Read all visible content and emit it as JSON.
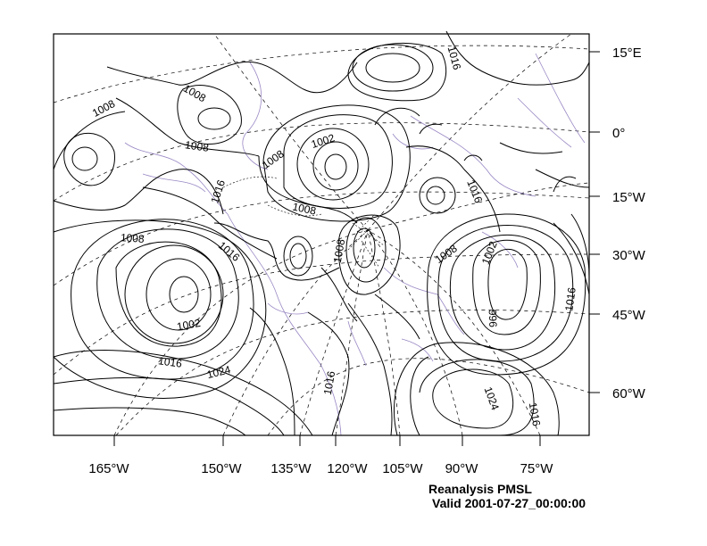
{
  "caption": {
    "title": "Reanalysis PMSL",
    "valid": "Valid 2001-07-27_00:00:00"
  },
  "axes": {
    "right_labels": [
      "15°E",
      "0°",
      "15°W",
      "30°W",
      "45°W",
      "60°W"
    ],
    "bottom_labels": [
      "165°W",
      "150°W",
      "135°W",
      "120°W",
      "105°W",
      "90°W",
      "75°W"
    ]
  },
  "contour_labels": [
    "1008",
    "1008",
    "1008",
    "1016",
    "1002",
    "1008",
    "1008",
    "1016",
    "1008",
    "1016",
    "1002",
    "1008",
    "1008",
    "996",
    "1016",
    "1002",
    "1016",
    "1024",
    "1016",
    "1016",
    "1024",
    "1016"
  ],
  "colors": {
    "contour": "#000000",
    "coast": "#9a88c4",
    "grid": "#000000"
  }
}
